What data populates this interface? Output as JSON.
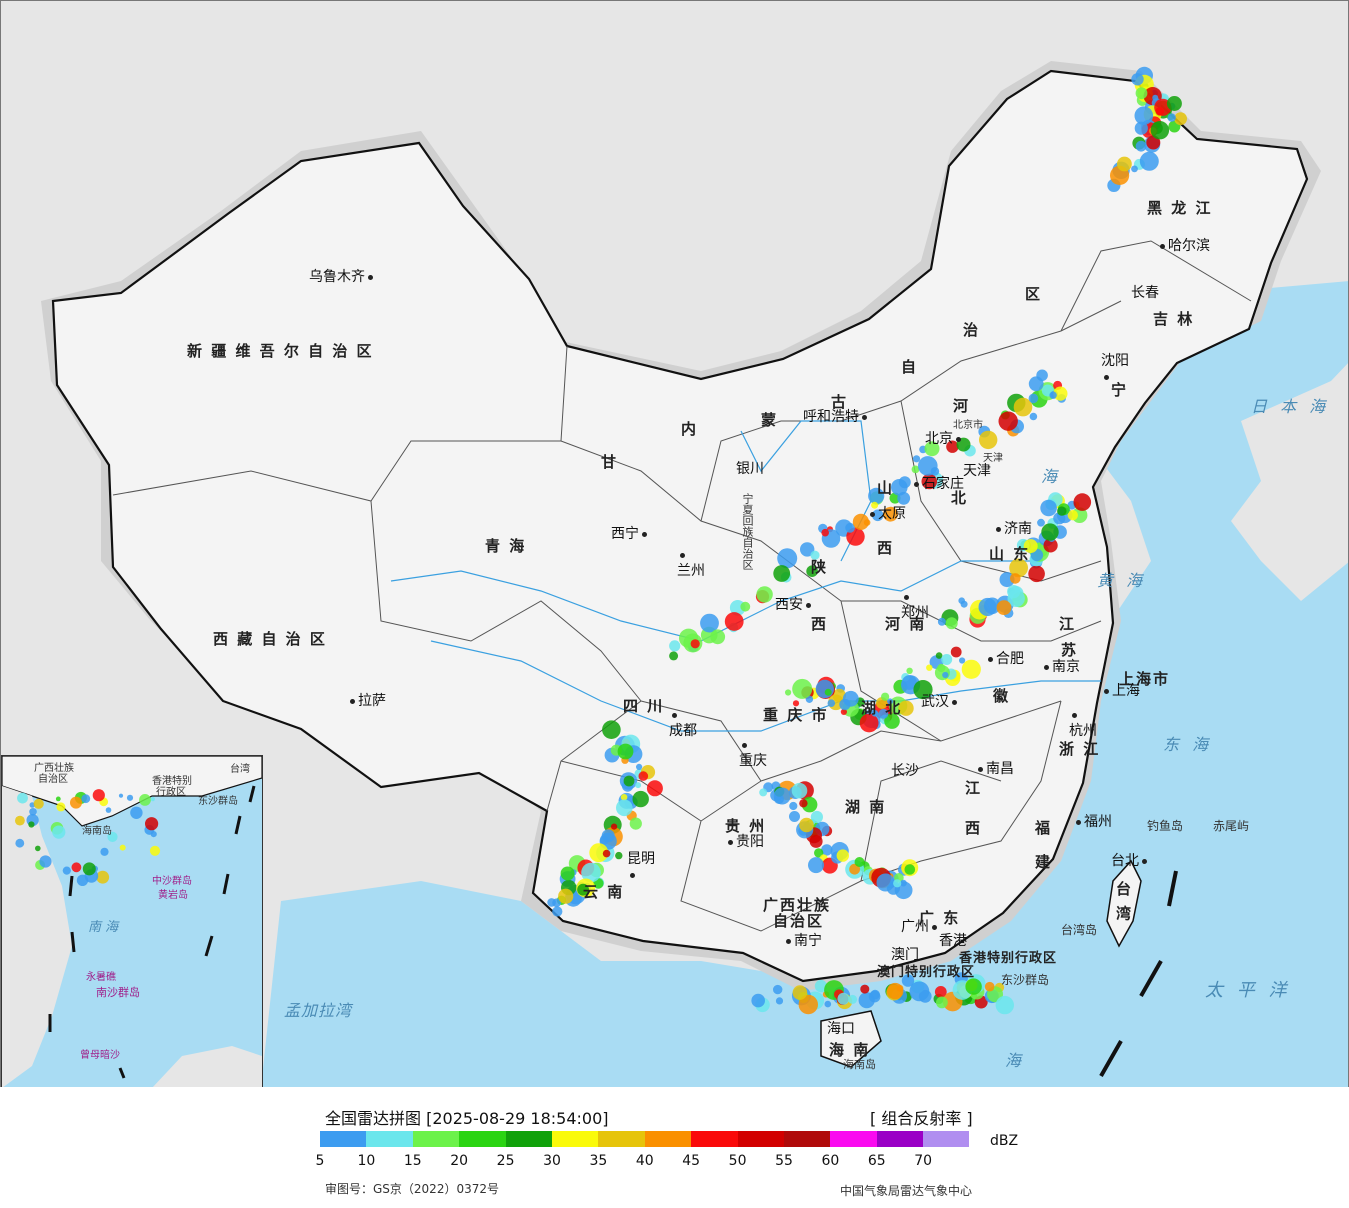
{
  "map": {
    "provinces": [
      {
        "id": "xinjiang",
        "label": "新 疆 维 吾 尔 自 治 区"
      },
      {
        "id": "xizang",
        "label": "西 藏 自 治 区"
      },
      {
        "id": "qinghai",
        "label": "青    海"
      },
      {
        "id": "gansu",
        "label": "甘"
      },
      {
        "id": "neimenggu-1",
        "label": "内"
      },
      {
        "id": "neimenggu-2",
        "label": "蒙"
      },
      {
        "id": "neimenggu-3",
        "label": "古"
      },
      {
        "id": "neimenggu-4",
        "label": "自"
      },
      {
        "id": "neimenggu-5",
        "label": "治"
      },
      {
        "id": "neimenggu-6",
        "label": "区"
      },
      {
        "id": "heilongjiang",
        "label": "黑 龙 江"
      },
      {
        "id": "jilin",
        "label": "吉 林"
      },
      {
        "id": "liaoning",
        "label": "宁"
      },
      {
        "id": "hebei",
        "label": "河"
      },
      {
        "id": "hebei-2",
        "label": "北"
      },
      {
        "id": "shanxi",
        "label": "山"
      },
      {
        "id": "shanxi-2",
        "label": "西"
      },
      {
        "id": "shandong",
        "label": "山 东"
      },
      {
        "id": "henan",
        "label": "河 南"
      },
      {
        "id": "shaanxi",
        "label": "陕"
      },
      {
        "id": "shaanxi-2",
        "label": "西"
      },
      {
        "id": "sichuan",
        "label": "四    川"
      },
      {
        "id": "chongqing",
        "label": "重 庆 市"
      },
      {
        "id": "hubei",
        "label": "湖  北"
      },
      {
        "id": "hunan",
        "label": "湖  南"
      },
      {
        "id": "jiangxi",
        "label": "江"
      },
      {
        "id": "jiangxi-2",
        "label": "西"
      },
      {
        "id": "anhui",
        "label": "徽"
      },
      {
        "id": "jiangsu",
        "label": "江"
      },
      {
        "id": "jiangsu-2",
        "label": "苏"
      },
      {
        "id": "zhejiang",
        "label": "浙 江"
      },
      {
        "id": "fujian",
        "label": "福"
      },
      {
        "id": "fujian-2",
        "label": "建"
      },
      {
        "id": "guangdong",
        "label": "广  东"
      },
      {
        "id": "guangxi",
        "label": "广西壮族"
      },
      {
        "id": "guangxi-2",
        "label": "自治区"
      },
      {
        "id": "yunnan",
        "label": "云  南"
      },
      {
        "id": "guizhou",
        "label": "贵  州"
      },
      {
        "id": "taiwan",
        "label": "台 湾"
      },
      {
        "id": "shanghai",
        "label": "上海市"
      },
      {
        "id": "hainan",
        "label": "海  南"
      },
      {
        "id": "ningxia",
        "label": "宁夏回族自治区"
      },
      {
        "id": "hk",
        "label": "香港特别行政区"
      },
      {
        "id": "macao",
        "label": "澳门特别行政区"
      }
    ],
    "cities": [
      {
        "id": "urumqi",
        "label": "乌鲁木齐"
      },
      {
        "id": "lhasa",
        "label": "拉萨"
      },
      {
        "id": "xining",
        "label": "西宁"
      },
      {
        "id": "lanzhou",
        "label": "兰州"
      },
      {
        "id": "yinchuan",
        "label": "银川"
      },
      {
        "id": "hohhot",
        "label": "呼和浩特"
      },
      {
        "id": "beijing",
        "label": "北京"
      },
      {
        "id": "tianjin",
        "label": "天津"
      },
      {
        "id": "shijiazhuang",
        "label": "石家庄"
      },
      {
        "id": "taiyuan",
        "label": "太原"
      },
      {
        "id": "jinan",
        "label": "济南"
      },
      {
        "id": "zhengzhou",
        "label": "郑州"
      },
      {
        "id": "xian",
        "label": "西安"
      },
      {
        "id": "chengdu",
        "label": "成都"
      },
      {
        "id": "chongqing-c",
        "label": "重庆"
      },
      {
        "id": "wuhan",
        "label": "武汉"
      },
      {
        "id": "hefei",
        "label": "合肥"
      },
      {
        "id": "nanjing",
        "label": "南京"
      },
      {
        "id": "shanghai-c",
        "label": "上海"
      },
      {
        "id": "hangzhou",
        "label": "杭州"
      },
      {
        "id": "nanchang",
        "label": "南昌"
      },
      {
        "id": "changsha",
        "label": "长沙"
      },
      {
        "id": "guiyang",
        "label": "贵阳"
      },
      {
        "id": "kunming",
        "label": "昆明"
      },
      {
        "id": "nanning",
        "label": "南宁"
      },
      {
        "id": "guangzhou",
        "label": "广州"
      },
      {
        "id": "fuzhou",
        "label": "福州"
      },
      {
        "id": "taipei",
        "label": "台北"
      },
      {
        "id": "haikou",
        "label": "海口"
      },
      {
        "id": "shenyang",
        "label": "沈阳"
      },
      {
        "id": "changchun",
        "label": "长春"
      },
      {
        "id": "harbin",
        "label": "哈尔滨"
      },
      {
        "id": "hongkong",
        "label": "香港"
      },
      {
        "id": "macau",
        "label": "澳门"
      }
    ],
    "seas": [
      {
        "id": "sea-of-japan",
        "label": "日 本 海"
      },
      {
        "id": "bohai",
        "label": "海"
      },
      {
        "id": "yellow-sea",
        "label": "黄 海"
      },
      {
        "id": "east-china-sea",
        "label": "东 海"
      },
      {
        "id": "pacific",
        "label": "太 平 洋"
      },
      {
        "id": "bay-of-bengal",
        "label": "孟加拉湾"
      },
      {
        "id": "south-china-sea",
        "label": "海"
      }
    ],
    "islands": [
      {
        "id": "diaoyu",
        "label": "钓鱼岛"
      },
      {
        "id": "chiwei",
        "label": "赤尾屿"
      },
      {
        "id": "taiwan-island",
        "label": "台湾岛"
      },
      {
        "id": "dongsha",
        "label": "东沙群岛"
      },
      {
        "id": "hainan-island",
        "label": "海南岛"
      },
      {
        "id": "beijing-city",
        "label": "北京市"
      },
      {
        "id": "tianjin-city",
        "label": "天津"
      }
    ],
    "inset": {
      "labels": [
        {
          "id": "inset-guangxi",
          "label": "广西壮族"
        },
        {
          "id": "inset-guangxi-2",
          "label": "自治区"
        },
        {
          "id": "inset-taiwan",
          "label": "台湾"
        },
        {
          "id": "inset-hk",
          "label": "香港特别"
        },
        {
          "id": "inset-hk-2",
          "label": "行政区"
        },
        {
          "id": "inset-dongsha",
          "label": "东沙群岛"
        },
        {
          "id": "inset-hainan",
          "label": "海南岛"
        },
        {
          "id": "inset-zhongsha",
          "label": "中沙群岛"
        },
        {
          "id": "inset-huangyan",
          "label": "黄岩岛"
        },
        {
          "id": "inset-nanhai",
          "label": "南   海"
        },
        {
          "id": "inset-nansha",
          "label": "南沙群岛"
        },
        {
          "id": "inset-yongshu",
          "label": "永暑礁"
        },
        {
          "id": "inset-zengmu",
          "label": "曾母暗沙"
        }
      ]
    }
  },
  "legend": {
    "title": "全国雷达拼图 [2025-08-29 18:54:00]",
    "product": "[ 组合反射率 ]",
    "unit": "dBZ",
    "ticks": [
      "5",
      "10",
      "15",
      "20",
      "25",
      "30",
      "35",
      "40",
      "45",
      "50",
      "55",
      "60",
      "65",
      "70"
    ],
    "colors": [
      "#3c9cf0",
      "#6be6ec",
      "#6cf24a",
      "#2ad412",
      "#10a10a",
      "#fafa0a",
      "#e6c40a",
      "#fa9000",
      "#fa0a0a",
      "#d20000",
      "#b00a0a",
      "#fa0af0",
      "#9a00c6",
      "#b08ef0"
    ],
    "review_no": "审图号：GS京（2022）0372号",
    "agency": "中国气象局雷达气象中心"
  }
}
